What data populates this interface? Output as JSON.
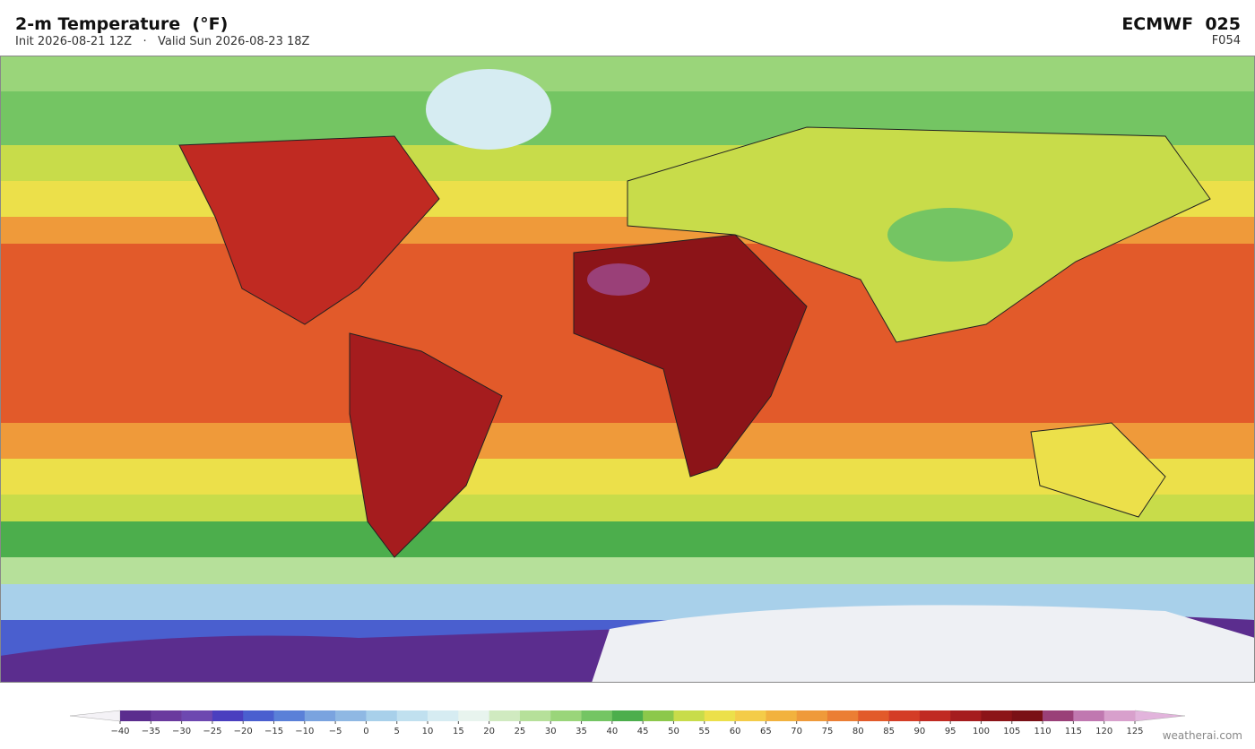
{
  "header": {
    "title": "2-m Temperature  (°F)",
    "subtitle": "Init 2026-08-21 12Z   ·   Valid Sun 2026-08-23 18Z",
    "model": "ECMWF  025",
    "forecast_hour": "F054"
  },
  "colorbar": {
    "ticks": [
      {
        "value": -40,
        "label": "−40"
      },
      {
        "value": -35,
        "label": "−35"
      },
      {
        "value": -30,
        "label": "−30"
      },
      {
        "value": -25,
        "label": "−25"
      },
      {
        "value": -20,
        "label": "−20"
      },
      {
        "value": -15,
        "label": "−15"
      },
      {
        "value": -10,
        "label": "−10"
      },
      {
        "value": -5,
        "label": "−5"
      },
      0,
      5,
      10,
      15,
      20,
      25,
      30,
      35,
      40,
      45,
      50,
      55,
      60,
      65,
      70,
      75,
      80,
      85,
      90,
      95,
      100,
      105,
      110,
      115,
      120,
      125
    ],
    "colors": [
      "#5b2d8e",
      "#6a3a9e",
      "#6d48b0",
      "#4a3fbf",
      "#4a5fcf",
      "#5a80d8",
      "#7aa3df",
      "#8fb8e3",
      "#a8d0ea",
      "#c0e0ef",
      "#d6ecf2",
      "#e8f4ee",
      "#d0eac0",
      "#b6e09a",
      "#9ad57a",
      "#74c563",
      "#4cae4c",
      "#8cc84b",
      "#c8dc4a",
      "#ece04a",
      "#f4cc48",
      "#f2b23e",
      "#ef9a3a",
      "#eb7e34",
      "#e25a2a",
      "#d43d26",
      "#c02a22",
      "#a51c1e",
      "#8c1418",
      "#7a1016",
      "#9a4078",
      "#c078b0",
      "#d8a0cc"
    ],
    "under_color": "#f4f2f6",
    "over_color": "#e2b4dc"
  },
  "watermark": "weatherai.com"
}
